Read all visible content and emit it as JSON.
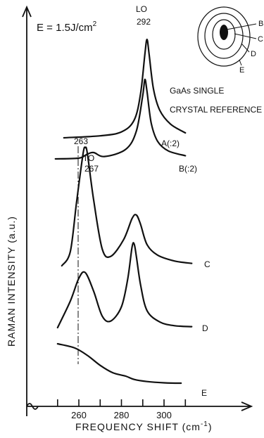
{
  "chart_data": {
    "type": "line",
    "energy_label": "E = 1.5J/cm",
    "energy_superscript": "2",
    "ylabel": "RAMAN INTENSITY (a.u.)",
    "xlabel_main": "FREQUENCY SHIFT (cm",
    "xlabel_sup": "-1",
    "xlabel_close": ")",
    "x_ticks": [
      "260",
      "280",
      "300"
    ],
    "xlim": [
      245,
      320
    ],
    "annotations": {
      "lo_label": "LO",
      "lo_value": "292",
      "to_label": "TO",
      "to_value": "267",
      "dash_value": "263",
      "reference_line1": "GaAs SINGLE",
      "reference_line2": "CRYSTAL REFERENCE"
    },
    "inset_labels": [
      "B",
      "C",
      "D",
      "E"
    ],
    "series": [
      {
        "name": "A(:2)",
        "x": [
          253,
          270,
          280,
          286,
          289,
          291,
          292,
          293,
          295,
          298,
          303,
          310
        ],
        "y": [
          0.0,
          0.02,
          0.06,
          0.18,
          0.45,
          0.85,
          1.0,
          0.85,
          0.5,
          0.28,
          0.14,
          0.05
        ]
      },
      {
        "name": "B(:2)",
        "x": [
          249,
          260,
          264,
          267,
          272,
          282,
          287,
          290,
          291,
          292,
          294,
          297,
          302,
          310
        ],
        "y": [
          0.0,
          0.01,
          0.06,
          0.08,
          0.03,
          0.12,
          0.35,
          0.8,
          1.0,
          0.85,
          0.45,
          0.22,
          0.1,
          0.04
        ]
      },
      {
        "name": "C",
        "x": [
          252,
          256,
          259,
          262,
          263,
          264,
          267,
          271,
          275,
          281,
          285,
          287,
          289,
          292,
          297,
          305,
          313
        ],
        "y": [
          0.0,
          0.12,
          0.55,
          0.95,
          1.0,
          0.95,
          0.55,
          0.14,
          0.08,
          0.22,
          0.4,
          0.43,
          0.35,
          0.18,
          0.09,
          0.04,
          0.02
        ]
      },
      {
        "name": "D",
        "x": [
          250,
          256,
          260,
          263,
          267,
          271,
          275,
          280,
          283,
          285,
          286,
          287,
          289,
          292,
          298,
          305,
          313
        ],
        "y": [
          0.0,
          0.28,
          0.52,
          0.58,
          0.38,
          0.12,
          0.07,
          0.22,
          0.52,
          0.85,
          0.88,
          0.75,
          0.45,
          0.18,
          0.06,
          0.02,
          0.01
        ]
      },
      {
        "name": "E",
        "x": [
          250,
          258,
          264,
          270,
          276,
          282,
          286,
          292,
          300,
          308
        ],
        "y": [
          1.0,
          0.9,
          0.72,
          0.48,
          0.3,
          0.22,
          0.14,
          0.09,
          0.06,
          0.05
        ]
      }
    ]
  }
}
